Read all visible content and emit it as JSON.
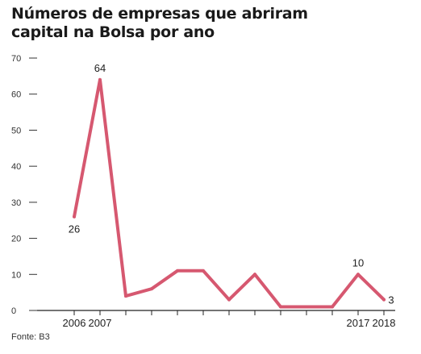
{
  "chart_data": {
    "type": "line",
    "title_lines": [
      "Números de empresas que abriram",
      "capital na Bolsa por ano"
    ],
    "source": "Fonte: B3",
    "x": [
      2006,
      2007,
      2008,
      2009,
      2010,
      2011,
      2012,
      2013,
      2014,
      2015,
      2016,
      2017,
      2018
    ],
    "values": [
      26,
      64,
      4,
      6,
      11,
      11,
      3,
      10,
      1,
      1,
      1,
      10,
      3
    ],
    "x_tick_labels": [
      {
        "x": 2006,
        "label": "2006"
      },
      {
        "x": 2007,
        "label": "2007"
      },
      {
        "x": 2017,
        "label": "2017"
      },
      {
        "x": 2018,
        "label": "2018"
      }
    ],
    "y_ticks": [
      0,
      10,
      20,
      30,
      40,
      50,
      60,
      70
    ],
    "ylim": [
      0,
      70
    ],
    "xlim": [
      2006,
      2018
    ],
    "data_labels": [
      {
        "x": 2006,
        "y": 26,
        "text": "26"
      },
      {
        "x": 2007,
        "y": 64,
        "text": "64"
      },
      {
        "x": 2017,
        "y": 10,
        "text": "10"
      },
      {
        "x": 2018,
        "y": 3,
        "text": "3"
      }
    ],
    "line_color": "#d65870",
    "axis_color": "#222222",
    "grid": false
  }
}
